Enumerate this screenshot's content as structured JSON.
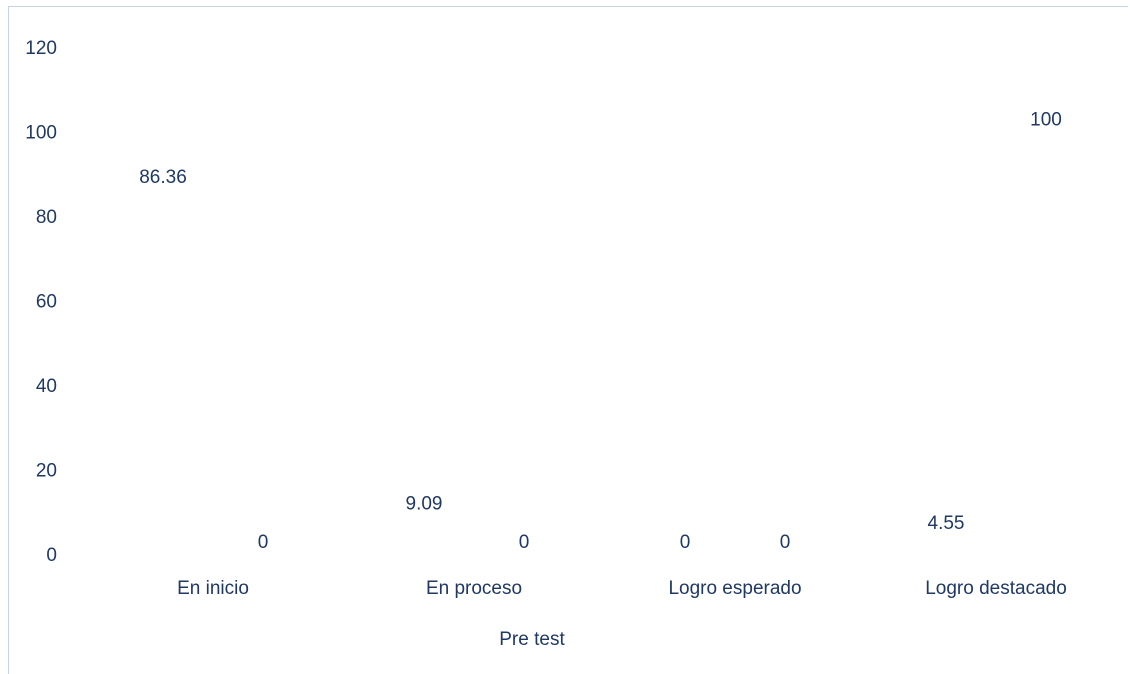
{
  "chart_data": {
    "type": "bar",
    "categories": [
      "En inicio",
      "En proceso",
      "Logro esperado",
      "Logro destacado"
    ],
    "series": [
      {
        "name": "Pre test",
        "values": [
          86.36,
          9.09,
          0,
          4.55
        ]
      },
      {
        "values": [
          0,
          0,
          0,
          100
        ]
      }
    ],
    "data_labels": [
      [
        "86.36",
        "9.09",
        "0",
        "4.55"
      ],
      [
        "0",
        "0",
        "0",
        "100"
      ]
    ],
    "yticks": [
      "0",
      "20",
      "40",
      "60",
      "80",
      "100",
      "120"
    ],
    "ylim": [
      0,
      120
    ],
    "grid": false,
    "legend": "bottom",
    "colors": {
      "text": "#1f3864",
      "border": "#c9d3e6"
    }
  }
}
